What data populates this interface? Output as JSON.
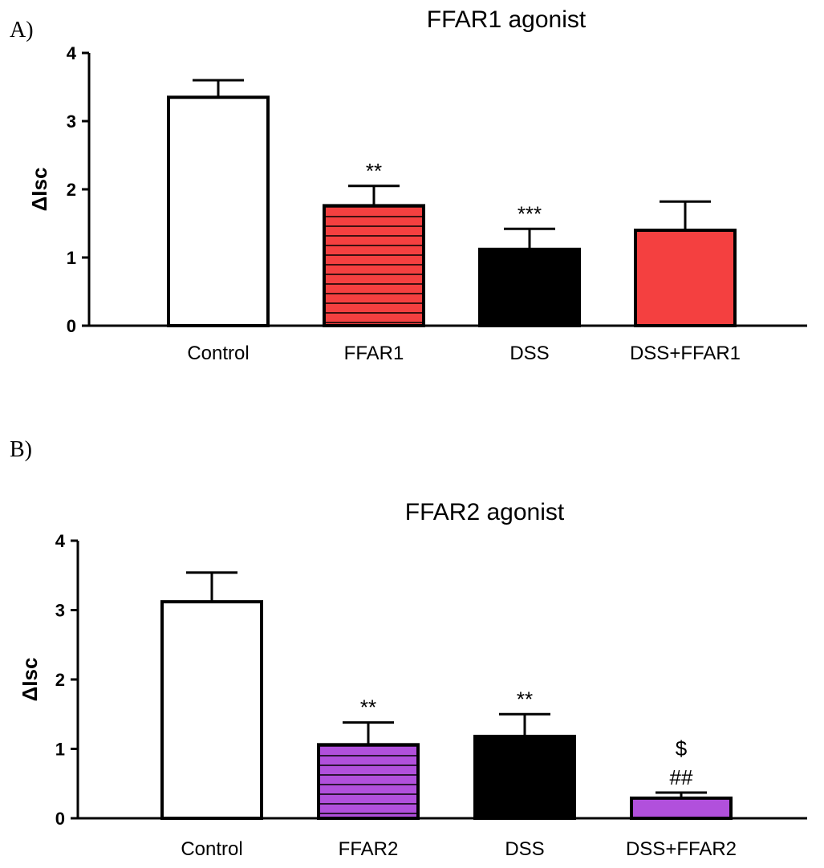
{
  "panels": {
    "a": {
      "letter": "A)"
    },
    "b": {
      "letter": "B)"
    }
  },
  "chart_data": [
    {
      "type": "bar",
      "title": "FFAR1 agonist",
      "xlabel": "",
      "ylabel": "ΔIsc",
      "ylim": [
        0,
        4
      ],
      "yticks": [
        "0",
        "1",
        "2",
        "3",
        "4"
      ],
      "categories": [
        "Control",
        "FFAR1",
        "DSS",
        "DSS+FFAR1"
      ],
      "values": [
        3.35,
        1.76,
        1.12,
        1.4
      ],
      "errors": [
        0.25,
        0.29,
        0.3,
        0.42
      ],
      "annotations": [
        "",
        "**",
        "***",
        ""
      ],
      "fills": [
        "#ffffff",
        "hatch-red",
        "#000000",
        "#f44040"
      ],
      "colors": {
        "red": "#f44040",
        "purple": "#b150dc",
        "black": "#000000"
      }
    },
    {
      "type": "bar",
      "title": "FFAR2 agonist",
      "xlabel": "",
      "ylabel": "ΔIsc",
      "ylim": [
        0,
        4
      ],
      "yticks": [
        "0",
        "1",
        "2",
        "3",
        "4"
      ],
      "categories": [
        "Control",
        "FFAR2",
        "DSS",
        "DSS+FFAR2"
      ],
      "values": [
        3.12,
        1.06,
        1.18,
        0.29
      ],
      "errors": [
        0.42,
        0.32,
        0.32,
        0.08
      ],
      "annotations": [
        "",
        "**",
        "**",
        "##"
      ],
      "annotations_top": [
        "",
        "",
        "",
        "$"
      ],
      "fills": [
        "#ffffff",
        "hatch-purple",
        "#000000",
        "#b150dc"
      ],
      "colors": {
        "red": "#f44040",
        "purple": "#b150dc",
        "black": "#000000"
      }
    }
  ]
}
